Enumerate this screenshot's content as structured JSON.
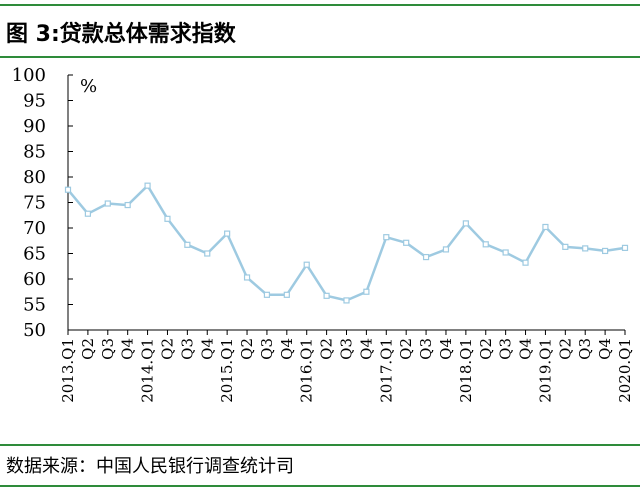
{
  "header": {
    "title": "图 3:贷款总体需求指数"
  },
  "footer": {
    "source": "数据来源：中国人民银行调查统计司"
  },
  "colors": {
    "rule": "#2e8b3a",
    "series": "#9ecae1",
    "marker_fill": "#ffffff"
  },
  "chart_data": {
    "type": "line",
    "title": "",
    "xlabel": "",
    "ylabel": "%",
    "ylim": [
      50,
      100
    ],
    "yticks": [
      50,
      55,
      60,
      65,
      70,
      75,
      80,
      85,
      90,
      95,
      100
    ],
    "grid": false,
    "categories": [
      "2013.Q1",
      "Q2",
      "Q3",
      "Q4",
      "2014.Q1",
      "Q2",
      "Q3",
      "Q4",
      "2015.Q1",
      "Q2",
      "Q3",
      "Q4",
      "2016.Q1",
      "Q2",
      "Q3",
      "Q4",
      "2017.Q1",
      "Q2",
      "Q3",
      "Q4",
      "2018.Q1",
      "Q2",
      "Q3",
      "Q4",
      "2019.Q1",
      "Q2",
      "Q3",
      "Q4",
      "2020.Q1"
    ],
    "series": [
      {
        "values": [
          77.5,
          72.8,
          74.8,
          74.5,
          78.3,
          71.8,
          66.7,
          65.0,
          68.9,
          60.3,
          56.9,
          56.9,
          62.8,
          56.7,
          55.8,
          57.5,
          68.2,
          67.1,
          64.3,
          65.8,
          70.9,
          66.8,
          65.2,
          63.2,
          70.2,
          66.3,
          66.0,
          65.5,
          66.1
        ]
      }
    ]
  }
}
